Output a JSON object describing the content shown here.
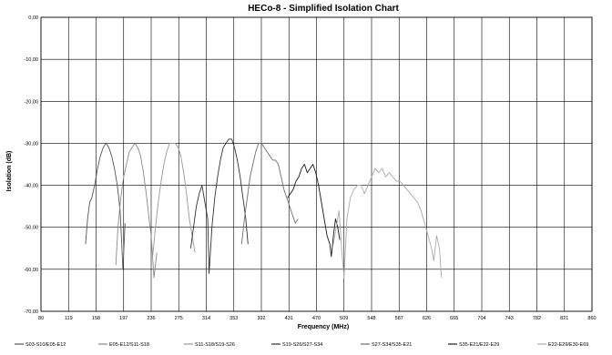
{
  "chart_data": {
    "type": "line",
    "title": "HECo-8 - Simplified Isolation Chart",
    "xlabel": "Frequency (MHz)",
    "ylabel": "Isolation (dB)",
    "xlim": [
      80,
      860
    ],
    "ylim": [
      -70,
      0
    ],
    "x_ticks": [
      "80",
      "119",
      "158",
      "197",
      "236",
      "275",
      "314",
      "353",
      "392",
      "431",
      "470",
      "509",
      "548",
      "587",
      "626",
      "665",
      "704",
      "743",
      "782",
      "821",
      "860"
    ],
    "y_ticks": [
      "0,00",
      "-10,00",
      "-20,00",
      "-30,00",
      "-40,00",
      "-50,00",
      "-60,00",
      "-70,00"
    ],
    "grid": true,
    "legend_position": "bottom",
    "series": [
      {
        "name": "S03-S10/E05-E12",
        "color": "#555555",
        "points": [
          [
            143,
            -54
          ],
          [
            146,
            -48
          ],
          [
            149,
            -44
          ],
          [
            152,
            -43
          ],
          [
            156,
            -40
          ],
          [
            160,
            -36
          ],
          [
            164,
            -33
          ],
          [
            168,
            -31
          ],
          [
            172,
            -30
          ],
          [
            176,
            -31
          ],
          [
            180,
            -33
          ],
          [
            184,
            -36
          ],
          [
            188,
            -40
          ],
          [
            192,
            -46
          ],
          [
            196,
            -60
          ],
          [
            199,
            -49
          ]
        ]
      },
      {
        "name": "E05-E12/S11-S18",
        "color": "#8a8a8a",
        "points": [
          [
            186,
            -59
          ],
          [
            189,
            -50
          ],
          [
            193,
            -43
          ],
          [
            197,
            -38
          ],
          [
            201,
            -35
          ],
          [
            205,
            -32
          ],
          [
            209,
            -31
          ],
          [
            213,
            -30
          ],
          [
            217,
            -31
          ],
          [
            221,
            -33
          ],
          [
            225,
            -37
          ],
          [
            229,
            -42
          ],
          [
            233,
            -48
          ],
          [
            236,
            -52
          ],
          [
            240,
            -62
          ],
          [
            244,
            -56
          ]
        ]
      },
      {
        "name": "S11-S18/S19-S26",
        "color": "#999999",
        "points": [
          [
            238,
            -57
          ],
          [
            242,
            -50
          ],
          [
            246,
            -44
          ],
          [
            250,
            -39
          ],
          [
            254,
            -35
          ],
          [
            258,
            -32
          ],
          [
            262,
            -30
          ],
          [
            266,
            -30
          ],
          [
            270,
            -30
          ],
          [
            274,
            -31
          ],
          [
            278,
            -33
          ],
          [
            282,
            -37
          ],
          [
            286,
            -42
          ],
          [
            290,
            -48
          ],
          [
            294,
            -52
          ],
          [
            298,
            -56
          ]
        ]
      },
      {
        "name": "S19-S26/S27-S34",
        "color": "#333333",
        "points": [
          [
            292,
            -55
          ],
          [
            296,
            -50
          ],
          [
            300,
            -45
          ],
          [
            304,
            -42
          ],
          [
            308,
            -40
          ],
          [
            312,
            -44
          ],
          [
            316,
            -48
          ],
          [
            318,
            -61
          ],
          [
            322,
            -50
          ],
          [
            326,
            -43
          ],
          [
            330,
            -38
          ],
          [
            334,
            -34
          ],
          [
            338,
            -31
          ],
          [
            342,
            -30
          ],
          [
            346,
            -29
          ],
          [
            350,
            -29
          ],
          [
            354,
            -31
          ],
          [
            358,
            -34
          ],
          [
            362,
            -38
          ],
          [
            366,
            -43
          ],
          [
            370,
            -48
          ],
          [
            373,
            -54
          ]
        ]
      },
      {
        "name": "S27-S34/S35-E21",
        "color": "#6f6f6f",
        "points": [
          [
            364,
            -54
          ],
          [
            368,
            -48
          ],
          [
            372,
            -43
          ],
          [
            376,
            -38
          ],
          [
            380,
            -35
          ],
          [
            384,
            -32
          ],
          [
            388,
            -30
          ],
          [
            392,
            -30
          ],
          [
            396,
            -31
          ],
          [
            400,
            -32
          ],
          [
            404,
            -33
          ],
          [
            408,
            -34
          ],
          [
            412,
            -34
          ],
          [
            416,
            -35
          ],
          [
            420,
            -38
          ],
          [
            424,
            -41
          ],
          [
            428,
            -43
          ],
          [
            432,
            -45
          ],
          [
            436,
            -47
          ],
          [
            440,
            -49
          ],
          [
            444,
            -48
          ]
        ]
      },
      {
        "name": "S35-E21/E22-E29",
        "color": "#1a1a1a",
        "points": [
          [
            429,
            -43
          ],
          [
            433,
            -42
          ],
          [
            437,
            -41
          ],
          [
            441,
            -39
          ],
          [
            445,
            -38
          ],
          [
            449,
            -36
          ],
          [
            453,
            -35
          ],
          [
            457,
            -37
          ],
          [
            461,
            -36
          ],
          [
            465,
            -35
          ],
          [
            469,
            -37
          ],
          [
            473,
            -40
          ],
          [
            477,
            -44
          ],
          [
            481,
            -48
          ],
          [
            485,
            -52
          ],
          [
            489,
            -54
          ],
          [
            491,
            -57
          ],
          [
            494,
            -52
          ],
          [
            497,
            -48
          ],
          [
            500,
            -50
          ],
          [
            503,
            -53
          ]
        ]
      },
      {
        "name": "E22-E29/E30-E69",
        "color": "#aaaaaa",
        "points": [
          [
            494,
            -54
          ],
          [
            498,
            -50
          ],
          [
            502,
            -46
          ],
          [
            506,
            -56
          ],
          [
            509,
            -62
          ],
          [
            513,
            -48
          ],
          [
            518,
            -43
          ],
          [
            523,
            -41
          ],
          [
            528,
            -40
          ],
          [
            533,
            -40
          ],
          [
            538,
            -42
          ],
          [
            543,
            -40
          ],
          [
            548,
            -38
          ],
          [
            553,
            -36
          ],
          [
            558,
            -37
          ],
          [
            563,
            -36
          ],
          [
            568,
            -38
          ],
          [
            573,
            -37
          ],
          [
            578,
            -38
          ],
          [
            583,
            -39
          ],
          [
            588,
            -39
          ],
          [
            593,
            -40
          ],
          [
            598,
            -41
          ],
          [
            603,
            -42
          ],
          [
            608,
            -43
          ],
          [
            613,
            -44
          ],
          [
            618,
            -46
          ],
          [
            623,
            -49
          ],
          [
            628,
            -52
          ],
          [
            633,
            -55
          ],
          [
            636,
            -58
          ],
          [
            640,
            -52
          ],
          [
            644,
            -55
          ],
          [
            647,
            -62
          ]
        ]
      }
    ]
  }
}
